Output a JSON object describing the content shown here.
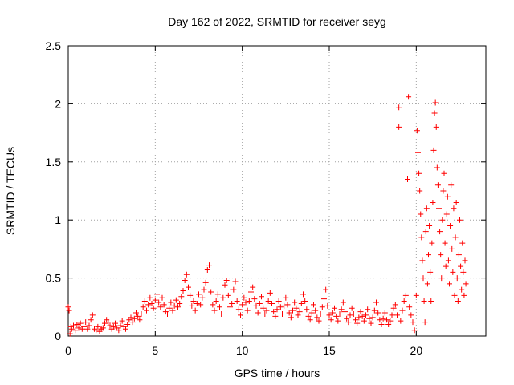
{
  "chart_data": {
    "type": "scatter",
    "title": "Day 162 of 2022, SRMTID for receiver seyg",
    "xlabel": "GPS time / hours",
    "ylabel": "SRMTID / TECUs",
    "xlim": [
      0,
      24
    ],
    "ylim": [
      0,
      2.5
    ],
    "xticks": [
      0,
      5,
      10,
      15,
      20
    ],
    "yticks": [
      0,
      0.5,
      1,
      1.5,
      2,
      2.5
    ],
    "xtick_labels": [
      "0",
      "5",
      "10",
      "15",
      "20"
    ],
    "ytick_labels": [
      "0",
      "0.5",
      "1",
      "1.5",
      "2",
      "2.5"
    ],
    "grid": true,
    "marker": "plus",
    "color": "#ff0000",
    "series": [
      {
        "name": "SRMTID",
        "points": [
          [
            0.0,
            0.25
          ],
          [
            0.05,
            0.22
          ],
          [
            0.1,
            0.02
          ],
          [
            0.15,
            0.08
          ],
          [
            0.2,
            0.06
          ],
          [
            0.3,
            0.09
          ],
          [
            0.4,
            0.05
          ],
          [
            0.5,
            0.1
          ],
          [
            0.6,
            0.07
          ],
          [
            0.7,
            0.11
          ],
          [
            0.8,
            0.06
          ],
          [
            0.9,
            0.08
          ],
          [
            1.0,
            0.12
          ],
          [
            1.1,
            0.06
          ],
          [
            1.2,
            0.09
          ],
          [
            1.3,
            0.14
          ],
          [
            1.4,
            0.18
          ],
          [
            1.5,
            0.06
          ],
          [
            1.6,
            0.05
          ],
          [
            1.7,
            0.08
          ],
          [
            1.8,
            0.04
          ],
          [
            1.9,
            0.06
          ],
          [
            2.0,
            0.07
          ],
          [
            2.1,
            0.11
          ],
          [
            2.2,
            0.14
          ],
          [
            2.3,
            0.12
          ],
          [
            2.4,
            0.09
          ],
          [
            2.5,
            0.06
          ],
          [
            2.6,
            0.08
          ],
          [
            2.7,
            0.11
          ],
          [
            2.8,
            0.07
          ],
          [
            2.9,
            0.05
          ],
          [
            3.0,
            0.09
          ],
          [
            3.1,
            0.13
          ],
          [
            3.2,
            0.08
          ],
          [
            3.3,
            0.06
          ],
          [
            3.4,
            0.1
          ],
          [
            3.5,
            0.14
          ],
          [
            3.6,
            0.16
          ],
          [
            3.7,
            0.12
          ],
          [
            3.8,
            0.15
          ],
          [
            3.9,
            0.2
          ],
          [
            4.0,
            0.17
          ],
          [
            4.1,
            0.14
          ],
          [
            4.2,
            0.19
          ],
          [
            4.3,
            0.25
          ],
          [
            4.4,
            0.3
          ],
          [
            4.5,
            0.22
          ],
          [
            4.6,
            0.27
          ],
          [
            4.7,
            0.33
          ],
          [
            4.8,
            0.28
          ],
          [
            4.9,
            0.24
          ],
          [
            5.0,
            0.31
          ],
          [
            5.1,
            0.36
          ],
          [
            5.2,
            0.29
          ],
          [
            5.3,
            0.25
          ],
          [
            5.4,
            0.33
          ],
          [
            5.5,
            0.27
          ],
          [
            5.6,
            0.21
          ],
          [
            5.7,
            0.19
          ],
          [
            5.8,
            0.24
          ],
          [
            5.9,
            0.29
          ],
          [
            6.0,
            0.22
          ],
          [
            6.1,
            0.26
          ],
          [
            6.2,
            0.31
          ],
          [
            6.3,
            0.25
          ],
          [
            6.4,
            0.28
          ],
          [
            6.5,
            0.34
          ],
          [
            6.6,
            0.39
          ],
          [
            6.7,
            0.48
          ],
          [
            6.8,
            0.53
          ],
          [
            6.9,
            0.42
          ],
          [
            7.0,
            0.35
          ],
          [
            7.1,
            0.26
          ],
          [
            7.2,
            0.3
          ],
          [
            7.3,
            0.22
          ],
          [
            7.4,
            0.28
          ],
          [
            7.5,
            0.36
          ],
          [
            7.6,
            0.27
          ],
          [
            7.7,
            0.33
          ],
          [
            7.8,
            0.4
          ],
          [
            7.9,
            0.46
          ],
          [
            8.0,
            0.57
          ],
          [
            8.1,
            0.61
          ],
          [
            8.2,
            0.38
          ],
          [
            8.3,
            0.27
          ],
          [
            8.4,
            0.22
          ],
          [
            8.5,
            0.3
          ],
          [
            8.6,
            0.36
          ],
          [
            8.7,
            0.25
          ],
          [
            8.8,
            0.19
          ],
          [
            8.9,
            0.33
          ],
          [
            9.0,
            0.44
          ],
          [
            9.1,
            0.48
          ],
          [
            9.2,
            0.35
          ],
          [
            9.3,
            0.25
          ],
          [
            9.4,
            0.28
          ],
          [
            9.5,
            0.4
          ],
          [
            9.6,
            0.47
          ],
          [
            9.7,
            0.3
          ],
          [
            9.8,
            0.23
          ],
          [
            9.9,
            0.18
          ],
          [
            10.0,
            0.27
          ],
          [
            10.1,
            0.33
          ],
          [
            10.2,
            0.29
          ],
          [
            10.3,
            0.22
          ],
          [
            10.4,
            0.3
          ],
          [
            10.5,
            0.38
          ],
          [
            10.6,
            0.42
          ],
          [
            10.7,
            0.32
          ],
          [
            10.8,
            0.26
          ],
          [
            10.9,
            0.2
          ],
          [
            11.0,
            0.28
          ],
          [
            11.1,
            0.34
          ],
          [
            11.2,
            0.24
          ],
          [
            11.3,
            0.19
          ],
          [
            11.4,
            0.22
          ],
          [
            11.5,
            0.3
          ],
          [
            11.6,
            0.37
          ],
          [
            11.7,
            0.28
          ],
          [
            11.8,
            0.21
          ],
          [
            11.9,
            0.17
          ],
          [
            12.0,
            0.23
          ],
          [
            12.1,
            0.3
          ],
          [
            12.2,
            0.25
          ],
          [
            12.3,
            0.19
          ],
          [
            12.4,
            0.26
          ],
          [
            12.5,
            0.33
          ],
          [
            12.6,
            0.27
          ],
          [
            12.7,
            0.2
          ],
          [
            12.8,
            0.16
          ],
          [
            12.9,
            0.22
          ],
          [
            13.0,
            0.29
          ],
          [
            13.1,
            0.24
          ],
          [
            13.2,
            0.18
          ],
          [
            13.3,
            0.21
          ],
          [
            13.4,
            0.28
          ],
          [
            13.5,
            0.36
          ],
          [
            13.6,
            0.3
          ],
          [
            13.7,
            0.23
          ],
          [
            13.8,
            0.17
          ],
          [
            13.9,
            0.14
          ],
          [
            14.0,
            0.2
          ],
          [
            14.1,
            0.27
          ],
          [
            14.2,
            0.22
          ],
          [
            14.3,
            0.16
          ],
          [
            14.4,
            0.13
          ],
          [
            14.5,
            0.19
          ],
          [
            14.6,
            0.25
          ],
          [
            14.7,
            0.32
          ],
          [
            14.8,
            0.4
          ],
          [
            14.9,
            0.26
          ],
          [
            15.0,
            0.18
          ],
          [
            15.1,
            0.14
          ],
          [
            15.2,
            0.2
          ],
          [
            15.3,
            0.24
          ],
          [
            15.4,
            0.17
          ],
          [
            15.5,
            0.13
          ],
          [
            15.6,
            0.19
          ],
          [
            15.7,
            0.23
          ],
          [
            15.8,
            0.29
          ],
          [
            15.9,
            0.21
          ],
          [
            16.0,
            0.15
          ],
          [
            16.1,
            0.12
          ],
          [
            16.2,
            0.18
          ],
          [
            16.3,
            0.24
          ],
          [
            16.4,
            0.19
          ],
          [
            16.5,
            0.14
          ],
          [
            16.6,
            0.11
          ],
          [
            16.7,
            0.16
          ],
          [
            16.8,
            0.21
          ],
          [
            16.9,
            0.17
          ],
          [
            17.0,
            0.13
          ],
          [
            17.1,
            0.18
          ],
          [
            17.2,
            0.23
          ],
          [
            17.3,
            0.15
          ],
          [
            17.4,
            0.11
          ],
          [
            17.5,
            0.16
          ],
          [
            17.6,
            0.22
          ],
          [
            17.7,
            0.29
          ],
          [
            17.8,
            0.2
          ],
          [
            17.9,
            0.14
          ],
          [
            18.0,
            0.1
          ],
          [
            18.1,
            0.15
          ],
          [
            18.2,
            0.2
          ],
          [
            18.3,
            0.14
          ],
          [
            18.4,
            0.1
          ],
          [
            18.5,
            0.13
          ],
          [
            18.6,
            0.18
          ],
          [
            18.7,
            0.24
          ],
          [
            18.8,
            0.27
          ],
          [
            18.9,
            0.18
          ],
          [
            19.0,
            1.97
          ],
          [
            19.0,
            1.8
          ],
          [
            19.1,
            0.13
          ],
          [
            19.2,
            0.22
          ],
          [
            19.3,
            0.3
          ],
          [
            19.4,
            0.35
          ],
          [
            19.5,
            1.35
          ],
          [
            19.55,
            2.06
          ],
          [
            19.6,
            0.25
          ],
          [
            19.7,
            0.18
          ],
          [
            19.8,
            0.12
          ],
          [
            19.9,
            0.05
          ],
          [
            20.0,
            0.35
          ],
          [
            20.05,
            1.77
          ],
          [
            20.1,
            1.58
          ],
          [
            20.15,
            1.4
          ],
          [
            20.2,
            1.25
          ],
          [
            20.25,
            1.05
          ],
          [
            20.3,
            0.85
          ],
          [
            20.35,
            0.65
          ],
          [
            20.4,
            0.5
          ],
          [
            20.45,
            0.3
          ],
          [
            20.5,
            0.12
          ],
          [
            20.55,
            0.9
          ],
          [
            20.6,
            1.1
          ],
          [
            20.65,
            0.45
          ],
          [
            20.7,
            0.7
          ],
          [
            20.75,
            0.95
          ],
          [
            20.8,
            0.55
          ],
          [
            20.85,
            0.3
          ],
          [
            20.9,
            0.8
          ],
          [
            20.95,
            1.15
          ],
          [
            21.0,
            1.6
          ],
          [
            21.05,
            1.92
          ],
          [
            21.1,
            2.01
          ],
          [
            21.15,
            1.8
          ],
          [
            21.2,
            1.45
          ],
          [
            21.25,
            1.3
          ],
          [
            21.3,
            1.1
          ],
          [
            21.35,
            0.9
          ],
          [
            21.4,
            0.7
          ],
          [
            21.45,
            0.5
          ],
          [
            21.5,
            1.0
          ],
          [
            21.55,
            1.25
          ],
          [
            21.6,
            1.4
          ],
          [
            21.65,
            0.8
          ],
          [
            21.7,
            0.6
          ],
          [
            21.75,
            1.05
          ],
          [
            21.8,
            1.2
          ],
          [
            21.85,
            0.65
          ],
          [
            21.9,
            0.45
          ],
          [
            21.95,
            0.95
          ],
          [
            22.0,
            1.3
          ],
          [
            22.05,
            0.75
          ],
          [
            22.1,
            0.55
          ],
          [
            22.15,
            1.1
          ],
          [
            22.2,
            0.35
          ],
          [
            22.25,
            0.85
          ],
          [
            22.3,
            1.15
          ],
          [
            22.35,
            0.5
          ],
          [
            22.4,
            0.3
          ],
          [
            22.45,
            0.7
          ],
          [
            22.5,
            1.0
          ],
          [
            22.55,
            0.6
          ],
          [
            22.6,
            0.4
          ],
          [
            22.65,
            0.8
          ],
          [
            22.7,
            0.55
          ],
          [
            22.75,
            0.35
          ],
          [
            22.8,
            0.65
          ],
          [
            22.85,
            0.45
          ]
        ]
      }
    ]
  }
}
